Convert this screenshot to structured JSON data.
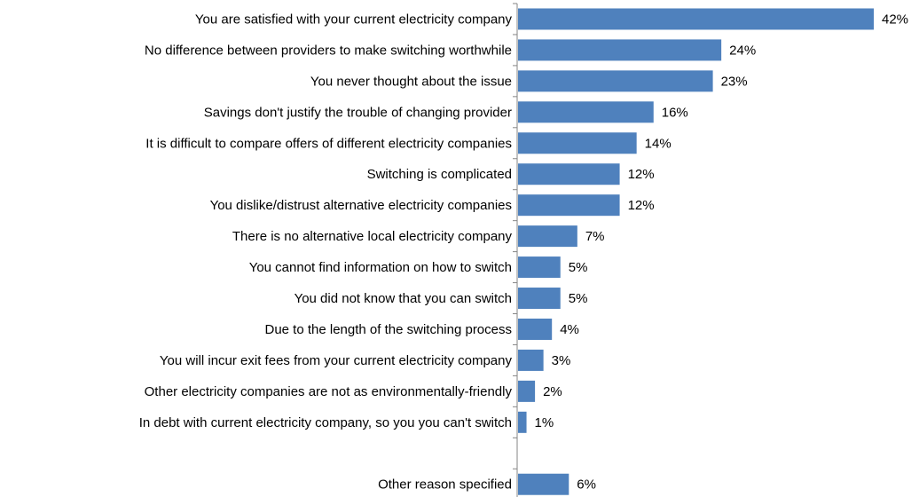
{
  "chart_data": {
    "type": "bar",
    "orientation": "horizontal",
    "title": "",
    "xlabel": "",
    "ylabel": "",
    "grid": false,
    "legend": "none",
    "bar_color": "#4F81BD",
    "value_suffix": "%",
    "xlim": [
      0,
      42
    ],
    "categories": [
      "You are satisfied with your current electricity company",
      "No difference between providers to make switching worthwhile",
      "You never thought about the issue",
      "Savings don't justify the trouble of changing provider",
      "It is difficult to compare offers of different electricity companies",
      "Switching is complicated",
      "You dislike/distrust alternative electricity companies",
      "There is no alternative local electricity company",
      "You cannot find information on how to switch",
      "You did not know that you can switch",
      "Due to the length of the switching process",
      "You will incur exit fees from your current electricity company",
      "Other electricity companies are not as environmentally-friendly",
      "In debt with current electricity company, so you  you can't switch",
      "",
      "Other reason specified"
    ],
    "values": [
      42,
      24,
      23,
      16,
      14,
      12,
      12,
      7,
      5,
      5,
      4,
      3,
      2,
      1,
      null,
      6
    ],
    "value_labels": [
      "42%",
      "24%",
      "23%",
      "16%",
      "14%",
      "12%",
      "12%",
      "7%",
      "5%",
      "5%",
      "4%",
      "3%",
      "2%",
      "1%",
      "",
      "6%"
    ]
  }
}
